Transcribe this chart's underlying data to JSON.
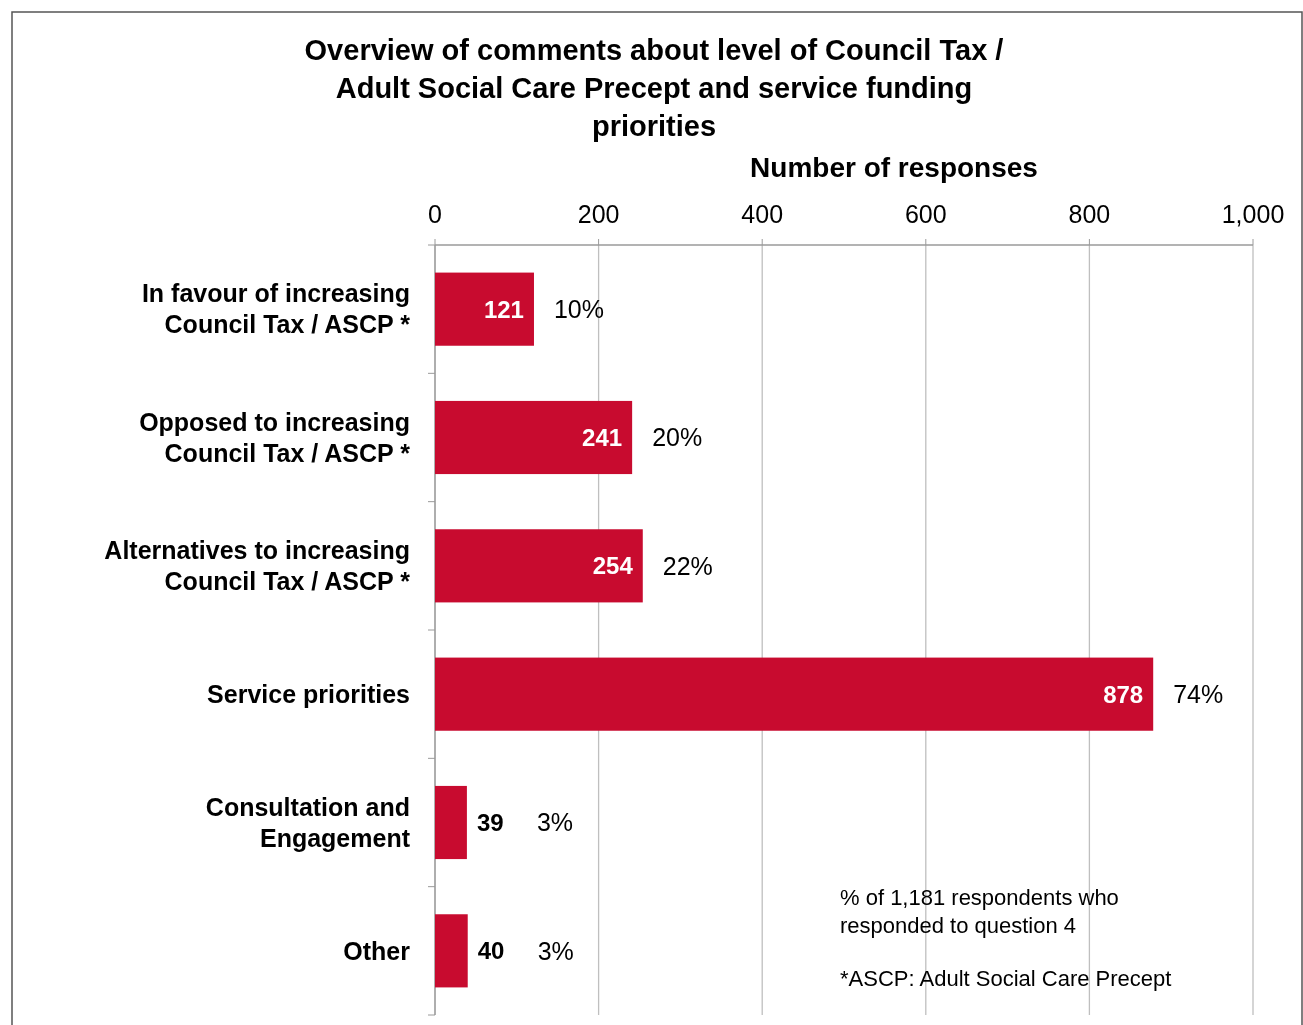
{
  "chart_data": {
    "type": "bar",
    "orientation": "horizontal",
    "title": "Overview of comments about level of Council Tax / Adult Social Care Precept and service funding priorities",
    "xlabel": "Number of responses",
    "categories": [
      "In favour of increasing Council Tax / ASCP *",
      "Opposed to increasing Council Tax / ASCP *",
      "Alternatives to increasing Council Tax / ASCP *",
      "Service priorities",
      "Consultation and Engagement",
      "Other"
    ],
    "values": [
      121,
      241,
      254,
      878,
      39,
      40
    ],
    "color": "#c80b2f",
    "xlim": [
      0,
      1000
    ],
    "xticks": [
      0,
      200,
      400,
      600,
      800,
      {
        "value": 1000,
        "label": "1,000"
      }
    ],
    "grid": "x",
    "data_labels": true,
    "annotations": [
      {
        "text": "10%",
        "x": 121,
        "y": "In favour of increasing Council Tax / ASCP *"
      },
      {
        "text": "20%",
        "x": 241,
        "y": "Opposed to increasing Council Tax / ASCP *"
      },
      {
        "text": "22%",
        "x": 254,
        "y": "Alternatives to increasing Council Tax / ASCP *"
      },
      {
        "text": "74%",
        "x": 878,
        "y": "Service priorities"
      },
      {
        "text": "3%",
        "x": 39,
        "y": "Consultation and Engagement"
      },
      {
        "text": "3%",
        "x": 40,
        "y": "Other"
      },
      "% of 1,181 respondents who responded to question 4",
      "*ASCP: Adult Social Care Precept"
    ]
  }
}
